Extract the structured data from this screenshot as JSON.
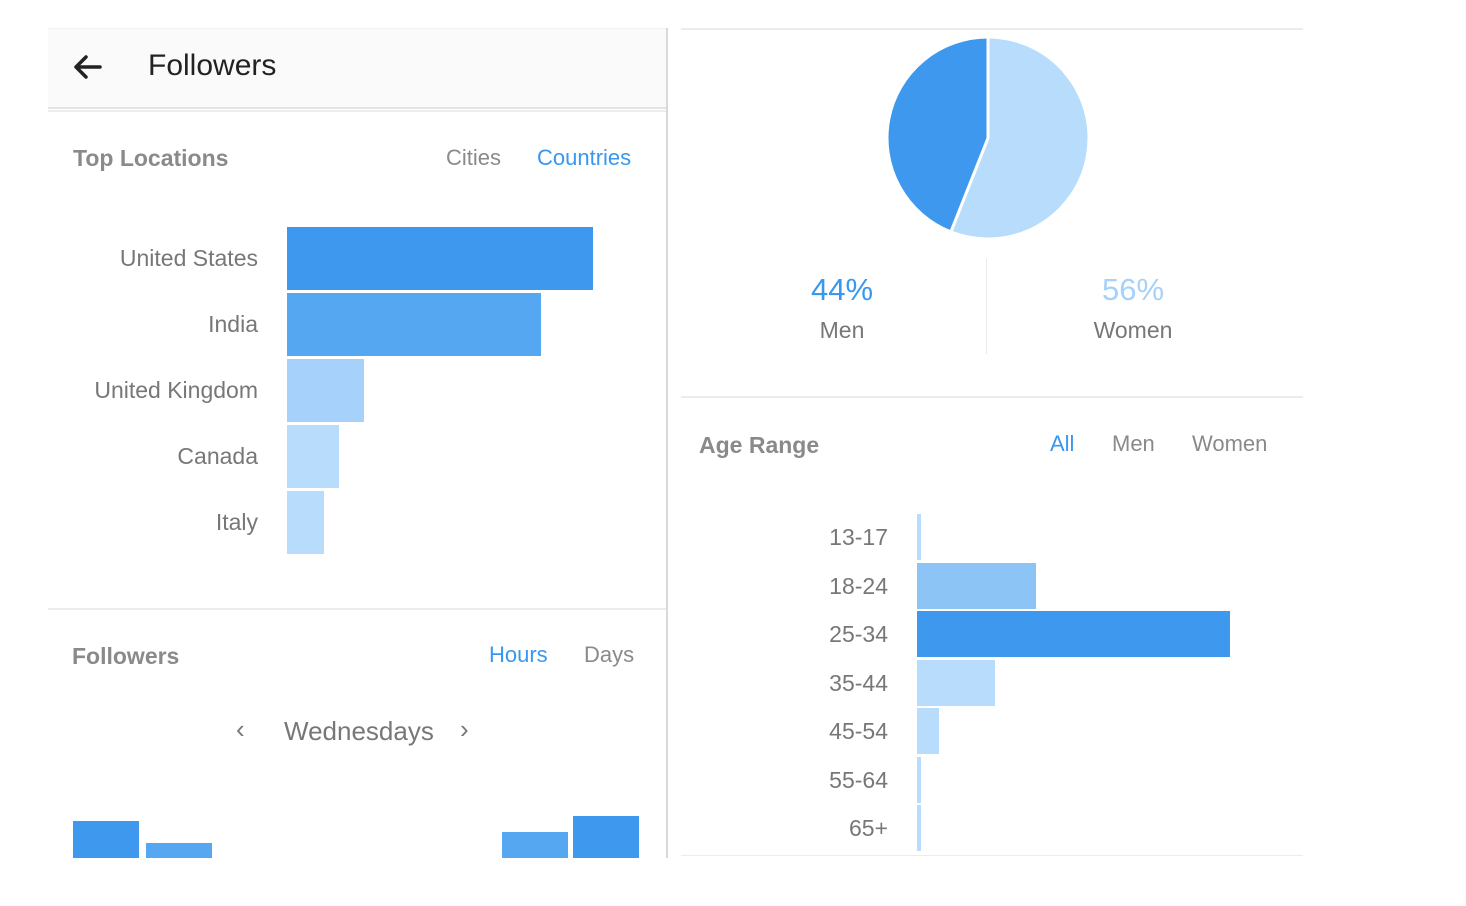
{
  "header": {
    "title": "Followers"
  },
  "top_locations": {
    "title": "Top Locations",
    "tabs": [
      "Cities",
      "Countries"
    ],
    "active_tab": "Countries",
    "items": [
      {
        "label": "United States",
        "value": 1.0
      },
      {
        "label": "India",
        "value": 0.83
      },
      {
        "label": "United Kingdom",
        "value": 0.25
      },
      {
        "label": "Canada",
        "value": 0.17
      },
      {
        "label": "Italy",
        "value": 0.12
      }
    ]
  },
  "followers_activity": {
    "title": "Followers",
    "tabs": [
      "Hours",
      "Days"
    ],
    "active_tab": "Hours",
    "day_label": "Wednesdays"
  },
  "gender": {
    "men_pct": "44%",
    "men_label": "Men",
    "women_pct": "56%",
    "women_label": "Women",
    "men_value": 44,
    "women_value": 56
  },
  "age_range": {
    "title": "Age Range",
    "tabs": [
      "All",
      "Men",
      "Women"
    ],
    "active_tab": "All",
    "items": [
      {
        "label": "13-17",
        "value": 0.01
      },
      {
        "label": "18-24",
        "value": 0.38
      },
      {
        "label": "25-34",
        "value": 1.0
      },
      {
        "label": "35-44",
        "value": 0.25
      },
      {
        "label": "45-54",
        "value": 0.07
      },
      {
        "label": "55-64",
        "value": 0.01
      },
      {
        "label": "65+",
        "value": 0.01
      }
    ]
  },
  "colors": {
    "accent": "#3897f0",
    "bar_dark": "#3d98ee",
    "bar_mid": "#56a7f1",
    "bar_light": "#a6d1fa",
    "bar_pale": "#b8dcfb"
  }
}
